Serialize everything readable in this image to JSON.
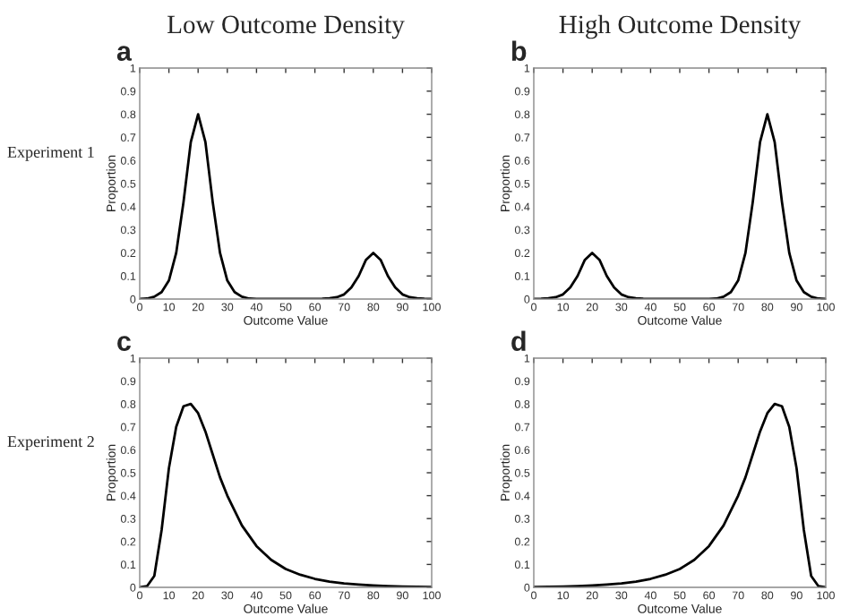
{
  "chart_data": [
    {
      "type": "line",
      "title": "a",
      "xlabel": "Outcome Value",
      "ylabel": "Proportion",
      "annotations": [
        "Low Outcome Density",
        "Experiment 1"
      ],
      "xlim": [
        0,
        100
      ],
      "ylim": [
        0,
        1
      ],
      "xticks": [
        0,
        10,
        20,
        30,
        40,
        50,
        60,
        70,
        80,
        90,
        100
      ],
      "yticks": [
        0,
        0.1,
        0.2,
        0.3,
        0.4,
        0.5,
        0.6,
        0.7,
        0.8,
        0.9,
        1
      ],
      "grid": false,
      "legend": false,
      "x": [
        0,
        2.5,
        5,
        7.5,
        10,
        12.5,
        15,
        17.5,
        20,
        22.5,
        25,
        27.5,
        30,
        32.5,
        35,
        37.5,
        40,
        45,
        50,
        55,
        60,
        62.5,
        65,
        67.5,
        70,
        72.5,
        75,
        77.5,
        80,
        82.5,
        85,
        87.5,
        90,
        92.5,
        95,
        97.5,
        100
      ],
      "series": [
        {
          "color": "#000000",
          "values": [
            0,
            0.002,
            0.01,
            0.03,
            0.08,
            0.2,
            0.42,
            0.68,
            0.8,
            0.68,
            0.42,
            0.2,
            0.08,
            0.03,
            0.01,
            0.002,
            0,
            0,
            0,
            0,
            0,
            0.001,
            0.003,
            0.008,
            0.02,
            0.05,
            0.1,
            0.17,
            0.2,
            0.17,
            0.1,
            0.05,
            0.02,
            0.008,
            0.003,
            0.001,
            0
          ]
        }
      ]
    },
    {
      "type": "line",
      "title": "b",
      "xlabel": "Outcome Value",
      "ylabel": "Proportion",
      "annotations": [
        "High Outcome Density"
      ],
      "xlim": [
        0,
        100
      ],
      "ylim": [
        0,
        1
      ],
      "xticks": [
        0,
        10,
        20,
        30,
        40,
        50,
        60,
        70,
        80,
        90,
        100
      ],
      "yticks": [
        0,
        0.1,
        0.2,
        0.3,
        0.4,
        0.5,
        0.6,
        0.7,
        0.8,
        0.9,
        1
      ],
      "grid": false,
      "legend": false,
      "x": [
        0,
        2.5,
        5,
        7.5,
        10,
        12.5,
        15,
        17.5,
        20,
        22.5,
        25,
        27.5,
        30,
        32.5,
        35,
        37.5,
        40,
        45,
        50,
        55,
        60,
        62.5,
        65,
        67.5,
        70,
        72.5,
        75,
        77.5,
        80,
        82.5,
        85,
        87.5,
        90,
        92.5,
        95,
        97.5,
        100
      ],
      "series": [
        {
          "color": "#000000",
          "values": [
            0,
            0.001,
            0.003,
            0.008,
            0.02,
            0.05,
            0.1,
            0.17,
            0.2,
            0.17,
            0.1,
            0.05,
            0.02,
            0.008,
            0.003,
            0.001,
            0,
            0,
            0,
            0,
            0,
            0.002,
            0.01,
            0.03,
            0.08,
            0.2,
            0.42,
            0.68,
            0.8,
            0.68,
            0.42,
            0.2,
            0.08,
            0.03,
            0.01,
            0.002,
            0
          ]
        }
      ]
    },
    {
      "type": "line",
      "title": "c",
      "xlabel": "Outcome Value",
      "ylabel": "Proportion",
      "annotations": [
        "Experiment 2"
      ],
      "xlim": [
        0,
        100
      ],
      "ylim": [
        0,
        1
      ],
      "xticks": [
        0,
        10,
        20,
        30,
        40,
        50,
        60,
        70,
        80,
        90,
        100
      ],
      "yticks": [
        0,
        0.1,
        0.2,
        0.3,
        0.4,
        0.5,
        0.6,
        0.7,
        0.8,
        0.9,
        1
      ],
      "grid": false,
      "legend": false,
      "x": [
        0,
        2.5,
        5,
        7.5,
        10,
        12.5,
        15,
        17.5,
        20,
        22.5,
        25,
        27.5,
        30,
        35,
        40,
        45,
        50,
        55,
        60,
        65,
        70,
        75,
        80,
        85,
        90,
        95,
        100
      ],
      "series": [
        {
          "color": "#000000",
          "values": [
            0,
            0.005,
            0.05,
            0.25,
            0.52,
            0.7,
            0.79,
            0.8,
            0.76,
            0.68,
            0.58,
            0.48,
            0.4,
            0.27,
            0.18,
            0.12,
            0.08,
            0.055,
            0.037,
            0.025,
            0.017,
            0.012,
            0.008,
            0.005,
            0.003,
            0.002,
            0.001
          ]
        }
      ]
    },
    {
      "type": "line",
      "title": "d",
      "xlabel": "Outcome Value",
      "ylabel": "Proportion",
      "xlim": [
        0,
        100
      ],
      "ylim": [
        0,
        1
      ],
      "xticks": [
        0,
        10,
        20,
        30,
        40,
        50,
        60,
        70,
        80,
        90,
        100
      ],
      "yticks": [
        0,
        0.1,
        0.2,
        0.3,
        0.4,
        0.5,
        0.6,
        0.7,
        0.8,
        0.9,
        1
      ],
      "grid": false,
      "legend": false,
      "x": [
        0,
        5,
        10,
        15,
        20,
        25,
        30,
        35,
        40,
        45,
        50,
        55,
        60,
        65,
        70,
        72.5,
        75,
        77.5,
        80,
        82.5,
        85,
        87.5,
        90,
        92.5,
        95,
        97.5,
        100
      ],
      "series": [
        {
          "color": "#000000",
          "values": [
            0.001,
            0.002,
            0.003,
            0.005,
            0.008,
            0.012,
            0.017,
            0.025,
            0.037,
            0.055,
            0.08,
            0.12,
            0.18,
            0.27,
            0.4,
            0.48,
            0.58,
            0.68,
            0.76,
            0.8,
            0.79,
            0.7,
            0.52,
            0.25,
            0.05,
            0.005,
            0
          ]
        }
      ]
    }
  ]
}
